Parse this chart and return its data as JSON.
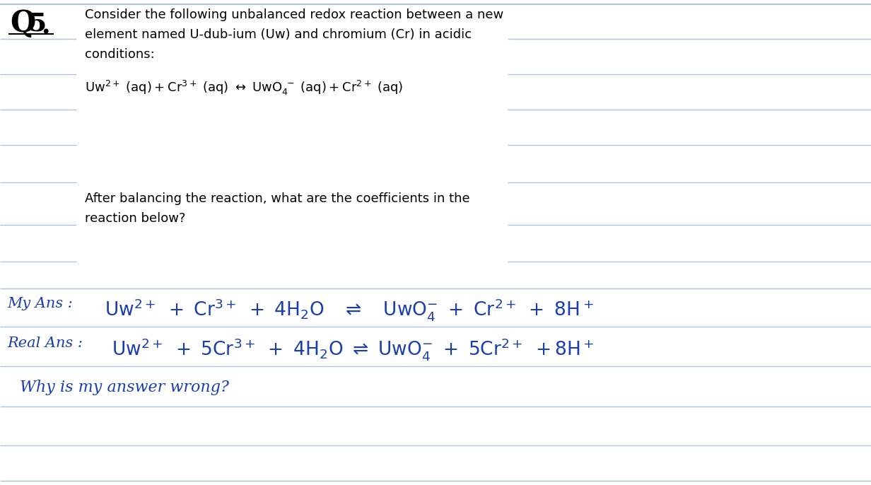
{
  "bg_color": "#ffffff",
  "line_color": "#b0c4d8",
  "q5_color": "#000000",
  "question_text_line1": "Consider the following unbalanced redox reaction between a new",
  "question_text_line2": "element named U-dub-ium (Uw) and chromium (Cr) in acidic",
  "question_text_line3": "conditions:",
  "question_color": "#000000",
  "reaction_color": "#000000",
  "balancing_question_line1": "After balancing the reaction, what are the coefficients in the",
  "balancing_question_line2": "reaction below?",
  "balancing_color": "#000000",
  "ans_color": "#1a3faa",
  "why_text": "Why is my answer wrong?",
  "why_color": "#1a3faa"
}
